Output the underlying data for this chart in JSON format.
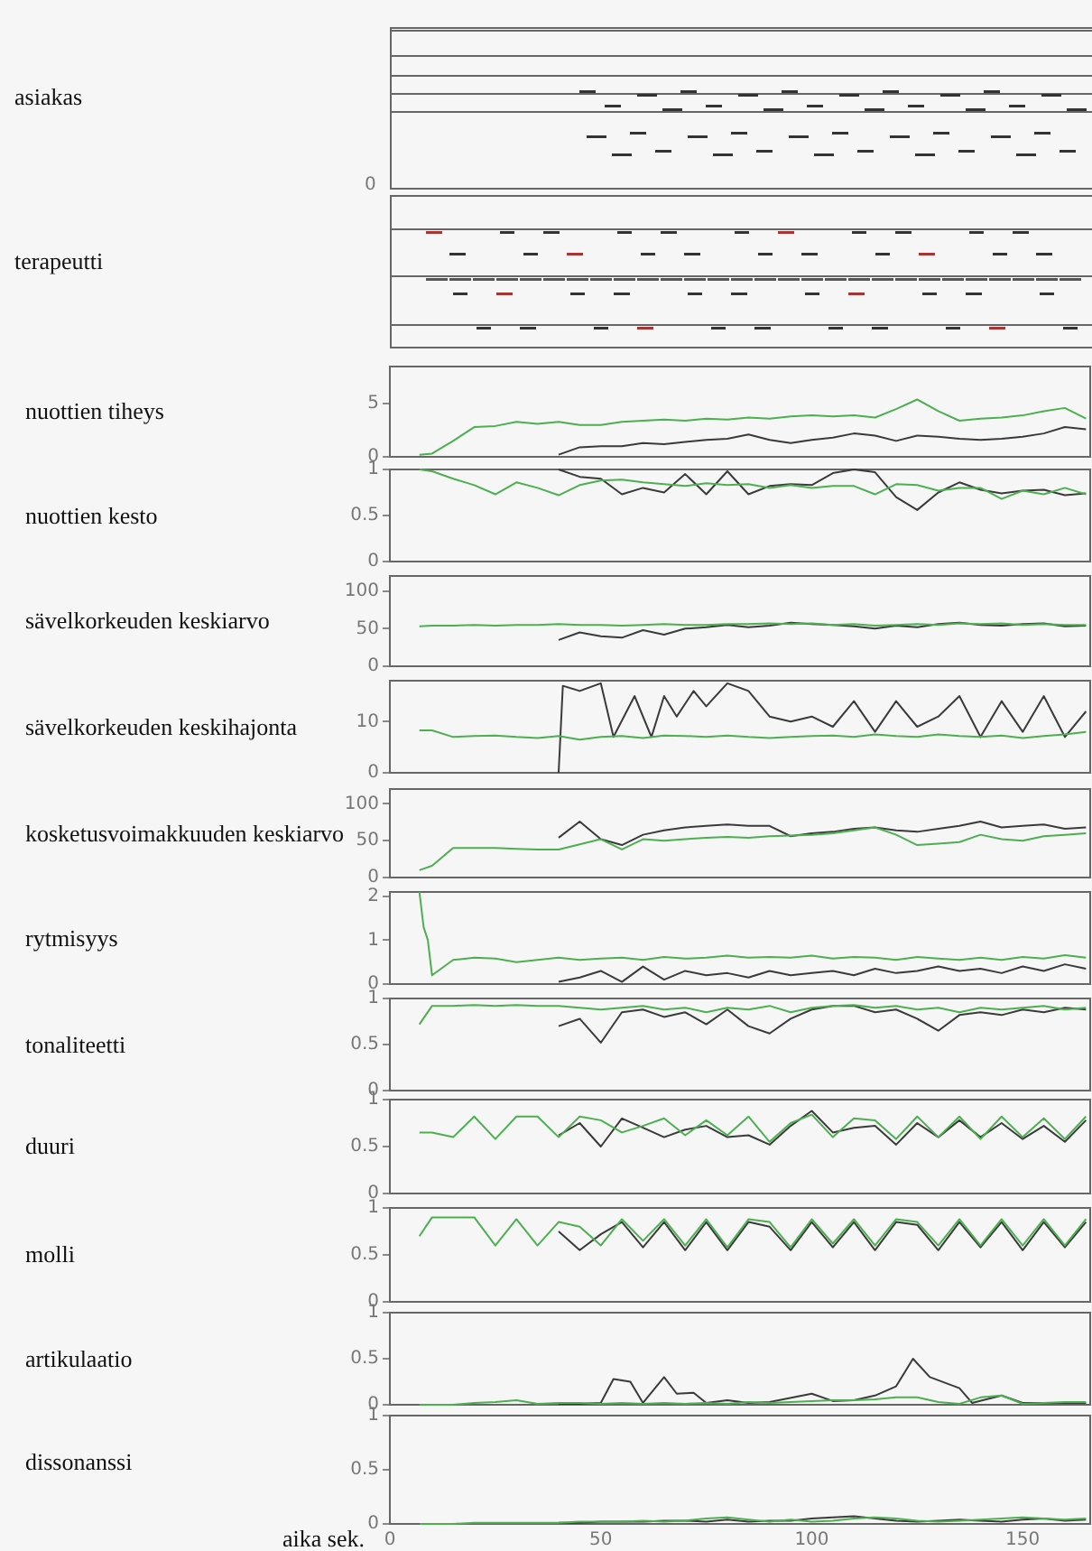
{
  "chart_data": [
    {
      "type": "other",
      "ylabel": "asiakas",
      "annotations": [
        "0"
      ]
    },
    {
      "type": "other",
      "ylabel": "terapeutti"
    },
    {
      "type": "line",
      "ylabel": "nuottien tiheys",
      "xlim": [
        0,
        166
      ],
      "ylim": [
        0,
        8.5
      ],
      "yticks": [
        0,
        5
      ],
      "xticks": [
        0,
        50,
        100,
        150
      ],
      "tick_labels": "y",
      "series": [
        {
          "color": "#4caf50",
          "x": [
            7,
            10,
            15,
            20,
            25,
            30,
            35,
            40,
            45,
            50,
            55,
            60,
            65,
            70,
            75,
            80,
            85,
            90,
            95,
            100,
            105,
            110,
            115,
            120,
            125,
            130,
            135,
            140,
            145,
            150,
            155,
            160,
            165
          ],
          "values": [
            0.2,
            0.3,
            1.5,
            2.8,
            2.9,
            3.3,
            3.1,
            3.3,
            3.0,
            3.0,
            3.3,
            3.4,
            3.5,
            3.4,
            3.6,
            3.5,
            3.7,
            3.6,
            3.8,
            3.9,
            3.8,
            3.9,
            3.7,
            4.5,
            5.4,
            4.3,
            3.4,
            3.6,
            3.7,
            3.9,
            4.3,
            4.6,
            3.6
          ]
        },
        {
          "color": "#3a3a3a",
          "x": [
            40,
            45,
            50,
            55,
            60,
            65,
            70,
            75,
            80,
            85,
            90,
            95,
            100,
            105,
            110,
            115,
            120,
            125,
            130,
            135,
            140,
            145,
            150,
            155,
            160,
            165
          ],
          "values": [
            0.2,
            0.9,
            1.0,
            1.0,
            1.3,
            1.2,
            1.4,
            1.6,
            1.7,
            2.1,
            1.6,
            1.3,
            1.6,
            1.8,
            2.2,
            2.0,
            1.5,
            2.0,
            1.9,
            1.7,
            1.6,
            1.7,
            1.9,
            2.2,
            2.8,
            2.6
          ]
        }
      ]
    },
    {
      "type": "line",
      "ylabel": "nuottien kesto",
      "xlim": [
        0,
        166
      ],
      "ylim": [
        0,
        1
      ],
      "yticks": [
        0,
        0.5,
        1
      ],
      "xticks": [
        0,
        50,
        100,
        150
      ],
      "tick_labels": "y",
      "series": [
        {
          "color": "#4caf50",
          "x": [
            7,
            10,
            15,
            20,
            25,
            30,
            35,
            40,
            45,
            50,
            55,
            60,
            65,
            70,
            75,
            80,
            85,
            90,
            95,
            100,
            105,
            110,
            115,
            120,
            125,
            130,
            135,
            140,
            145,
            150,
            155,
            160,
            165
          ],
          "values": [
            1,
            0.98,
            0.9,
            0.83,
            0.73,
            0.86,
            0.8,
            0.72,
            0.83,
            0.88,
            0.89,
            0.86,
            0.84,
            0.82,
            0.85,
            0.83,
            0.84,
            0.8,
            0.83,
            0.8,
            0.82,
            0.82,
            0.73,
            0.84,
            0.83,
            0.77,
            0.8,
            0.8,
            0.68,
            0.77,
            0.73,
            0.8,
            0.73
          ]
        },
        {
          "color": "#3a3a3a",
          "x": [
            40,
            45,
            50,
            55,
            60,
            65,
            70,
            75,
            80,
            85,
            90,
            95,
            100,
            105,
            110,
            115,
            120,
            125,
            130,
            135,
            140,
            145,
            150,
            155,
            160,
            165
          ],
          "values": [
            1,
            0.92,
            0.9,
            0.73,
            0.8,
            0.75,
            0.95,
            0.73,
            0.98,
            0.73,
            0.82,
            0.84,
            0.83,
            0.96,
            1,
            0.97,
            0.7,
            0.56,
            0.75,
            0.86,
            0.78,
            0.74,
            0.77,
            0.78,
            0.72,
            0.74
          ]
        }
      ]
    },
    {
      "type": "line",
      "ylabel": "sävelkorkeuden keskiarvo",
      "xlim": [
        0,
        166
      ],
      "ylim": [
        0,
        120
      ],
      "yticks": [
        0,
        50,
        100
      ],
      "xticks": [
        0,
        50,
        100,
        150
      ],
      "tick_labels": "y",
      "series": [
        {
          "color": "#4caf50",
          "x": [
            7,
            10,
            15,
            20,
            25,
            30,
            35,
            40,
            45,
            50,
            55,
            60,
            65,
            70,
            75,
            80,
            85,
            90,
            95,
            100,
            105,
            110,
            115,
            120,
            125,
            130,
            135,
            140,
            145,
            150,
            155,
            160,
            165
          ],
          "values": [
            53,
            54,
            54,
            55,
            54,
            55,
            55,
            56,
            55,
            55,
            54,
            55,
            56,
            55,
            55,
            56,
            56,
            57,
            56,
            57,
            55,
            56,
            54,
            55,
            56,
            55,
            57,
            56,
            57,
            55,
            56,
            55,
            55
          ]
        },
        {
          "color": "#3a3a3a",
          "x": [
            40,
            45,
            50,
            55,
            60,
            65,
            70,
            75,
            80,
            85,
            90,
            95,
            100,
            105,
            110,
            115,
            120,
            125,
            130,
            135,
            140,
            145,
            150,
            155,
            160,
            165
          ],
          "values": [
            35,
            45,
            40,
            38,
            48,
            42,
            50,
            52,
            55,
            52,
            54,
            58,
            56,
            55,
            53,
            50,
            54,
            52,
            56,
            58,
            55,
            54,
            56,
            57,
            53,
            54
          ]
        }
      ]
    },
    {
      "type": "line",
      "ylabel": "sävelkorkeuden keskihajonta",
      "xlim": [
        0,
        166
      ],
      "ylim": [
        0,
        18
      ],
      "yticks": [
        0,
        10
      ],
      "xticks": [
        0,
        50,
        100,
        150
      ],
      "tick_labels": "y",
      "series": [
        {
          "color": "#4caf50",
          "x": [
            7,
            10,
            15,
            20,
            25,
            30,
            35,
            40,
            45,
            50,
            55,
            60,
            65,
            70,
            75,
            80,
            85,
            90,
            95,
            100,
            105,
            110,
            115,
            120,
            125,
            130,
            135,
            140,
            145,
            150,
            155,
            160,
            165
          ],
          "values": [
            8.3,
            8.3,
            7.0,
            7.2,
            7.3,
            7.0,
            6.8,
            7.2,
            6.5,
            7.0,
            7.2,
            6.8,
            7.3,
            7.2,
            7.0,
            7.3,
            7.0,
            6.8,
            7.0,
            7.2,
            7.3,
            7.0,
            7.5,
            7.2,
            7.0,
            7.5,
            7.2,
            7.0,
            7.3,
            6.8,
            7.2,
            7.5,
            8.0
          ]
        },
        {
          "color": "#3a3a3a",
          "x": [
            40,
            41,
            45,
            50,
            53,
            58,
            62,
            65,
            68,
            72,
            75,
            80,
            85,
            90,
            95,
            100,
            105,
            110,
            115,
            120,
            125,
            130,
            135,
            140,
            145,
            150,
            155,
            160,
            165
          ],
          "values": [
            0,
            17,
            16,
            17.5,
            7,
            15,
            7,
            15,
            11,
            16,
            13,
            17.5,
            16,
            11,
            10,
            11,
            9,
            14,
            8,
            14,
            9,
            11,
            15,
            7,
            14,
            8,
            15,
            7,
            12
          ]
        }
      ]
    },
    {
      "type": "line",
      "ylabel": "kosketusvoimakkuuden keskiarvo",
      "xlim": [
        0,
        166
      ],
      "ylim": [
        0,
        120
      ],
      "yticks": [
        0,
        50,
        100
      ],
      "xticks": [
        0,
        50,
        100,
        150
      ],
      "tick_labels": "y",
      "series": [
        {
          "color": "#4caf50",
          "x": [
            7,
            10,
            15,
            20,
            25,
            30,
            35,
            40,
            45,
            50,
            55,
            60,
            65,
            70,
            75,
            80,
            85,
            90,
            95,
            100,
            105,
            110,
            115,
            120,
            125,
            130,
            135,
            140,
            145,
            150,
            155,
            160,
            165
          ],
          "values": [
            10,
            16,
            40,
            40,
            40,
            39,
            38,
            38,
            45,
            52,
            38,
            52,
            50,
            52,
            54,
            55,
            54,
            56,
            57,
            58,
            60,
            64,
            68,
            58,
            44,
            46,
            48,
            58,
            52,
            50,
            56,
            58,
            60
          ]
        },
        {
          "color": "#3a3a3a",
          "x": [
            40,
            45,
            50,
            55,
            60,
            65,
            70,
            75,
            80,
            85,
            90,
            95,
            100,
            105,
            110,
            115,
            120,
            125,
            130,
            135,
            140,
            145,
            150,
            155,
            160,
            165
          ],
          "values": [
            54,
            76,
            52,
            44,
            58,
            64,
            68,
            70,
            72,
            70,
            70,
            56,
            60,
            62,
            66,
            68,
            64,
            62,
            66,
            70,
            76,
            68,
            70,
            72,
            66,
            68
          ]
        }
      ]
    },
    {
      "type": "line",
      "ylabel": "rytmisyys",
      "xlim": [
        0,
        166
      ],
      "ylim": [
        0,
        2.1
      ],
      "yticks": [
        0,
        1,
        2
      ],
      "xticks": [
        0,
        50,
        100,
        150
      ],
      "tick_labels": "y",
      "series": [
        {
          "color": "#4caf50",
          "x": [
            7,
            8,
            9,
            10,
            15,
            20,
            25,
            30,
            35,
            40,
            45,
            50,
            55,
            60,
            65,
            70,
            75,
            80,
            85,
            90,
            95,
            100,
            105,
            110,
            115,
            120,
            125,
            130,
            135,
            140,
            145,
            150,
            155,
            160,
            165
          ],
          "values": [
            2.1,
            1.3,
            1.0,
            0.2,
            0.55,
            0.6,
            0.58,
            0.5,
            0.55,
            0.6,
            0.55,
            0.58,
            0.6,
            0.55,
            0.62,
            0.58,
            0.6,
            0.65,
            0.6,
            0.62,
            0.6,
            0.65,
            0.58,
            0.62,
            0.6,
            0.55,
            0.62,
            0.58,
            0.55,
            0.6,
            0.55,
            0.62,
            0.58,
            0.66,
            0.6
          ]
        },
        {
          "color": "#3a3a3a",
          "x": [
            40,
            45,
            50,
            55,
            60,
            65,
            70,
            75,
            80,
            85,
            90,
            95,
            100,
            105,
            110,
            115,
            120,
            125,
            130,
            135,
            140,
            145,
            150,
            155,
            160,
            165
          ],
          "values": [
            0.05,
            0.15,
            0.3,
            0.05,
            0.4,
            0.1,
            0.3,
            0.2,
            0.25,
            0.15,
            0.3,
            0.2,
            0.25,
            0.3,
            0.2,
            0.35,
            0.25,
            0.3,
            0.4,
            0.3,
            0.35,
            0.25,
            0.4,
            0.3,
            0.45,
            0.35
          ]
        }
      ]
    },
    {
      "type": "line",
      "ylabel": "tonaliteetti",
      "xlim": [
        0,
        166
      ],
      "ylim": [
        0,
        1
      ],
      "yticks": [
        0,
        0.5,
        1
      ],
      "xticks": [
        0,
        50,
        100,
        150
      ],
      "tick_labels": "y",
      "series": [
        {
          "color": "#4caf50",
          "x": [
            7,
            10,
            15,
            20,
            25,
            30,
            35,
            40,
            45,
            50,
            55,
            60,
            65,
            70,
            75,
            80,
            85,
            90,
            95,
            100,
            105,
            110,
            115,
            120,
            125,
            130,
            135,
            140,
            145,
            150,
            155,
            160,
            165
          ],
          "values": [
            0.72,
            0.92,
            0.92,
            0.93,
            0.92,
            0.93,
            0.92,
            0.92,
            0.9,
            0.88,
            0.9,
            0.92,
            0.88,
            0.9,
            0.85,
            0.9,
            0.88,
            0.92,
            0.85,
            0.9,
            0.92,
            0.93,
            0.9,
            0.92,
            0.88,
            0.9,
            0.85,
            0.9,
            0.88,
            0.9,
            0.92,
            0.88,
            0.9
          ]
        },
        {
          "color": "#3a3a3a",
          "x": [
            40,
            45,
            50,
            55,
            60,
            65,
            70,
            75,
            80,
            85,
            90,
            95,
            100,
            105,
            110,
            115,
            120,
            125,
            130,
            135,
            140,
            145,
            150,
            155,
            160,
            165
          ],
          "values": [
            0.7,
            0.78,
            0.52,
            0.85,
            0.88,
            0.8,
            0.85,
            0.72,
            0.88,
            0.7,
            0.62,
            0.78,
            0.88,
            0.92,
            0.92,
            0.85,
            0.88,
            0.78,
            0.65,
            0.82,
            0.85,
            0.82,
            0.88,
            0.85,
            0.9,
            0.88
          ]
        }
      ]
    },
    {
      "type": "line",
      "ylabel": "duuri",
      "xlim": [
        0,
        166
      ],
      "ylim": [
        0,
        1
      ],
      "yticks": [
        0,
        0.5,
        1
      ],
      "xticks": [
        0,
        50,
        100,
        150
      ],
      "tick_labels": "y",
      "series": [
        {
          "color": "#4caf50",
          "x": [
            7,
            10,
            15,
            20,
            25,
            30,
            35,
            40,
            45,
            50,
            55,
            60,
            65,
            70,
            75,
            80,
            85,
            90,
            95,
            100,
            105,
            110,
            115,
            120,
            125,
            130,
            135,
            140,
            145,
            150,
            155,
            160,
            165
          ],
          "values": [
            0.65,
            0.65,
            0.6,
            0.82,
            0.58,
            0.82,
            0.82,
            0.6,
            0.82,
            0.78,
            0.65,
            0.72,
            0.8,
            0.62,
            0.78,
            0.62,
            0.82,
            0.55,
            0.75,
            0.84,
            0.6,
            0.8,
            0.78,
            0.58,
            0.82,
            0.6,
            0.82,
            0.58,
            0.82,
            0.6,
            0.8,
            0.58,
            0.82
          ]
        },
        {
          "color": "#3a3a3a",
          "x": [
            40,
            45,
            50,
            55,
            60,
            65,
            70,
            75,
            80,
            85,
            90,
            95,
            100,
            105,
            110,
            115,
            120,
            125,
            130,
            135,
            140,
            145,
            150,
            155,
            160,
            165
          ],
          "values": [
            0.62,
            0.75,
            0.5,
            0.8,
            0.7,
            0.6,
            0.68,
            0.72,
            0.6,
            0.62,
            0.52,
            0.72,
            0.88,
            0.65,
            0.7,
            0.72,
            0.52,
            0.75,
            0.6,
            0.78,
            0.6,
            0.75,
            0.58,
            0.72,
            0.55,
            0.78
          ]
        }
      ]
    },
    {
      "type": "line",
      "ylabel": "molli",
      "xlim": [
        0,
        166
      ],
      "ylim": [
        0,
        1
      ],
      "yticks": [
        0,
        0.5,
        1
      ],
      "xticks": [
        0,
        50,
        100,
        150
      ],
      "tick_labels": "y",
      "series": [
        {
          "color": "#4caf50",
          "x": [
            7,
            10,
            15,
            20,
            25,
            30,
            35,
            40,
            45,
            50,
            55,
            60,
            65,
            70,
            75,
            80,
            85,
            90,
            95,
            100,
            105,
            110,
            115,
            120,
            125,
            130,
            135,
            140,
            145,
            150,
            155,
            160,
            165
          ],
          "values": [
            0.7,
            0.9,
            0.9,
            0.9,
            0.6,
            0.88,
            0.6,
            0.85,
            0.8,
            0.6,
            0.88,
            0.65,
            0.88,
            0.6,
            0.88,
            0.58,
            0.88,
            0.85,
            0.58,
            0.88,
            0.62,
            0.88,
            0.6,
            0.88,
            0.85,
            0.6,
            0.88,
            0.6,
            0.88,
            0.6,
            0.88,
            0.6,
            0.88
          ]
        },
        {
          "color": "#3a3a3a",
          "x": [
            40,
            45,
            50,
            55,
            60,
            65,
            70,
            75,
            80,
            85,
            90,
            95,
            100,
            105,
            110,
            115,
            120,
            125,
            130,
            135,
            140,
            145,
            150,
            155,
            160,
            165
          ],
          "values": [
            0.75,
            0.55,
            0.72,
            0.85,
            0.58,
            0.85,
            0.55,
            0.85,
            0.55,
            0.85,
            0.8,
            0.55,
            0.85,
            0.58,
            0.85,
            0.55,
            0.85,
            0.82,
            0.55,
            0.85,
            0.58,
            0.85,
            0.55,
            0.85,
            0.58,
            0.85
          ]
        }
      ]
    },
    {
      "type": "line",
      "ylabel": "artikulaatio",
      "xlim": [
        0,
        166
      ],
      "ylim": [
        0,
        1
      ],
      "yticks": [
        0,
        0.5,
        1
      ],
      "xticks": [
        0,
        50,
        100,
        150
      ],
      "tick_labels": "y",
      "series": [
        {
          "color": "#4caf50",
          "x": [
            7,
            10,
            15,
            20,
            25,
            30,
            35,
            40,
            45,
            50,
            55,
            60,
            65,
            70,
            75,
            80,
            85,
            90,
            95,
            100,
            105,
            110,
            115,
            120,
            125,
            130,
            135,
            140,
            145,
            150,
            155,
            160,
            165
          ],
          "values": [
            0,
            0,
            0,
            0.02,
            0.03,
            0.05,
            0.01,
            0.02,
            0.02,
            0.01,
            0.02,
            0.01,
            0.02,
            0.01,
            0.02,
            0.01,
            0.03,
            0.02,
            0.03,
            0.04,
            0.05,
            0.05,
            0.06,
            0.08,
            0.08,
            0.03,
            0.01,
            0.08,
            0.1,
            0.01,
            0.02,
            0.03,
            0.03
          ]
        },
        {
          "color": "#3a3a3a",
          "x": [
            40,
            45,
            50,
            53,
            57,
            60,
            65,
            68,
            72,
            75,
            80,
            85,
            90,
            100,
            105,
            110,
            115,
            120,
            124,
            128,
            135,
            138,
            145,
            150,
            160,
            165
          ],
          "values": [
            0.01,
            0.01,
            0.02,
            0.28,
            0.25,
            0.02,
            0.3,
            0.12,
            0.13,
            0.02,
            0.05,
            0.02,
            0.03,
            0.12,
            0.04,
            0.05,
            0.1,
            0.2,
            0.5,
            0.3,
            0.18,
            0.02,
            0.1,
            0.02,
            0.02,
            0.02
          ]
        }
      ]
    },
    {
      "type": "line",
      "ylabel": "dissonanssi",
      "xlabel": "aika sek.",
      "xlim": [
        0,
        166
      ],
      "ylim": [
        0,
        1
      ],
      "yticks": [
        0,
        0.5,
        1
      ],
      "xticks": [
        0,
        50,
        100,
        150
      ],
      "series": [
        {
          "color": "#4caf50",
          "x": [
            7,
            10,
            15,
            20,
            25,
            30,
            35,
            40,
            45,
            50,
            55,
            60,
            65,
            70,
            75,
            80,
            85,
            90,
            95,
            100,
            105,
            110,
            115,
            120,
            125,
            130,
            135,
            140,
            145,
            150,
            155,
            160,
            165
          ],
          "values": [
            0,
            0,
            0,
            0.01,
            0.01,
            0.01,
            0.01,
            0.01,
            0.02,
            0.02,
            0.02,
            0.03,
            0.02,
            0.03,
            0.05,
            0.06,
            0.04,
            0.02,
            0.04,
            0.02,
            0.03,
            0.05,
            0.06,
            0.05,
            0.03,
            0.02,
            0.03,
            0.04,
            0.05,
            0.06,
            0.05,
            0.04,
            0.05
          ]
        },
        {
          "color": "#3a3a3a",
          "x": [
            40,
            45,
            50,
            55,
            60,
            65,
            70,
            75,
            80,
            85,
            90,
            95,
            100,
            105,
            110,
            115,
            120,
            125,
            130,
            135,
            140,
            145,
            150,
            155,
            160,
            165
          ],
          "values": [
            0.01,
            0.01,
            0.02,
            0.02,
            0.02,
            0.03,
            0.03,
            0.02,
            0.04,
            0.02,
            0.03,
            0.03,
            0.05,
            0.06,
            0.07,
            0.05,
            0.03,
            0.02,
            0.03,
            0.04,
            0.03,
            0.02,
            0.04,
            0.05,
            0.03,
            0.04
          ]
        }
      ]
    }
  ]
}
